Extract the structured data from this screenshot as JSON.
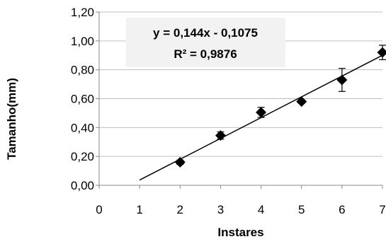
{
  "chart_data": {
    "type": "scatter",
    "xlabel": "Instares",
    "ylabel": "Tamanho(mm)",
    "xlim": [
      0,
      7
    ],
    "ylim": [
      0,
      1.2
    ],
    "x_ticks": [
      "0",
      "1",
      "2",
      "3",
      "4",
      "5",
      "6",
      "7"
    ],
    "y_ticks": [
      "0,00",
      "0,20",
      "0,40",
      "0,60",
      "0,80",
      "1,00",
      "1,20"
    ],
    "grid": "horizontal",
    "series": [
      {
        "marker": "diamond",
        "color": "#000000",
        "points": [
          {
            "x": 2,
            "y": 0.16,
            "err": 0.015
          },
          {
            "x": 3,
            "y": 0.345,
            "err": 0.025
          },
          {
            "x": 4,
            "y": 0.505,
            "err": 0.035
          },
          {
            "x": 5,
            "y": 0.58,
            "err": 0.012
          },
          {
            "x": 6,
            "y": 0.73,
            "err": 0.08
          },
          {
            "x": 7,
            "y": 0.92,
            "err": 0.05
          }
        ]
      }
    ],
    "trendline": {
      "slope": 0.144,
      "intercept": -0.1075,
      "x_range": [
        1,
        7
      ],
      "equation": "y = 0,144x - 0,1075",
      "r2": "R² = 0,9876"
    }
  },
  "colors": {
    "grid": "#bfbfbf",
    "axis": "#888888",
    "marker": "#000000",
    "equation_box": "#f2f2f2"
  }
}
